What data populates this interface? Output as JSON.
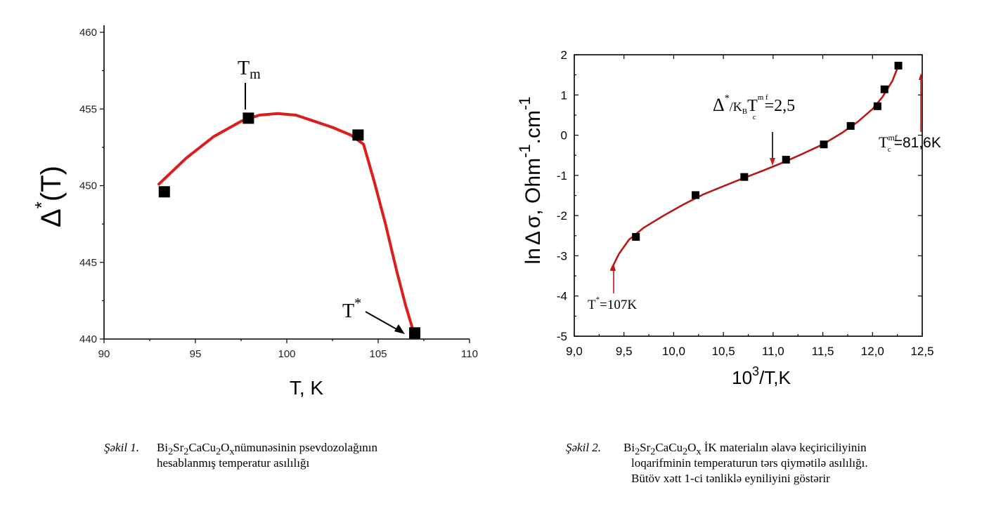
{
  "chart_data": [
    {
      "type": "scatter",
      "xlabel": "T, K",
      "ylabel_main": "Δ",
      "ylabel_sup": "*",
      "ylabel_tail": "(T)",
      "xlim": [
        90,
        110
      ],
      "ylim": [
        440,
        460
      ],
      "xticks": [
        90,
        95,
        100,
        105,
        110
      ],
      "yticks": [
        440,
        445,
        450,
        455,
        460
      ],
      "grid": false,
      "points": [
        {
          "x": 93.3,
          "y": 449.6
        },
        {
          "x": 97.9,
          "y": 454.4
        },
        {
          "x": 103.9,
          "y": 453.3
        },
        {
          "x": 107.0,
          "y": 440.4
        }
      ],
      "fit_line": {
        "color": "#dd1c1c",
        "x": [
          93.0,
          94.5,
          96.0,
          97.5,
          98.5,
          99.5,
          100.5,
          101.5,
          102.5,
          103.5,
          104.2,
          104.8,
          105.4,
          106.0,
          106.5,
          107.0
        ],
        "y": [
          450.1,
          451.8,
          453.2,
          454.2,
          454.6,
          454.7,
          454.6,
          454.2,
          453.8,
          453.3,
          452.7,
          450.2,
          447.5,
          444.5,
          442.2,
          440.2
        ]
      },
      "annotations": [
        {
          "label": "T",
          "sub": "m",
          "x": 97.9,
          "y": 455.2
        },
        {
          "label": "T",
          "sup": "*",
          "x": 107.0,
          "y": 440.4
        }
      ]
    },
    {
      "type": "scatter",
      "xlabel": "10",
      "xlabel_sup": "3",
      "xlabel_tail": "/T,K",
      "ylabel_pre": "ln",
      "ylabel_delta": "Δ",
      "ylabel_mid": "σ, Ohm",
      "ylabel_sup1": "-1",
      "ylabel_mid2": ".cm",
      "ylabel_sup2": "-1",
      "xlim": [
        9.0,
        12.5
      ],
      "ylim": [
        -5,
        2
      ],
      "xticks": [
        "9,0",
        "9,5",
        "10,0",
        "10,5",
        "11,0",
        "11,5",
        "12,0",
        "12,5"
      ],
      "xtick_values": [
        9.0,
        9.5,
        10.0,
        10.5,
        11.0,
        11.5,
        12.0,
        12.5
      ],
      "yticks": [
        "-5",
        "-4",
        "-3",
        "-2",
        "-1",
        "0",
        "1",
        "2"
      ],
      "ytick_values": [
        -5,
        -4,
        -3,
        -2,
        -1,
        0,
        1,
        2
      ],
      "grid": false,
      "points": [
        {
          "x": 9.62,
          "y": -2.53
        },
        {
          "x": 10.22,
          "y": -1.49
        },
        {
          "x": 10.71,
          "y": -1.04
        },
        {
          "x": 11.13,
          "y": -0.61
        },
        {
          "x": 11.51,
          "y": -0.23
        },
        {
          "x": 11.78,
          "y": 0.23
        },
        {
          "x": 12.05,
          "y": 0.72
        },
        {
          "x": 12.12,
          "y": 1.14
        },
        {
          "x": 12.26,
          "y": 1.73
        }
      ],
      "fit_line": {
        "color": "#b81818",
        "x": [
          9.37,
          9.45,
          9.55,
          9.7,
          9.9,
          10.1,
          10.3,
          10.5,
          10.7,
          10.9,
          11.1,
          11.3,
          11.5,
          11.7,
          11.85,
          12.0,
          12.1,
          12.2,
          12.26
        ],
        "y": [
          -3.35,
          -2.95,
          -2.6,
          -2.3,
          -2.0,
          -1.72,
          -1.47,
          -1.27,
          -1.07,
          -0.88,
          -0.68,
          -0.46,
          -0.23,
          0.07,
          0.33,
          0.65,
          0.95,
          1.35,
          1.73
        ]
      },
      "annotations": [
        {
          "label": "Δ",
          "sup": "*",
          "tail": "/K",
          "sub2": "B",
          "tail2": "T",
          "sup2": "m f",
          "sub3": "c",
          "tail3": "=2,5",
          "arrow_x": 10.87,
          "arrow_y": -0.87
        },
        {
          "label": "T",
          "sup": "mf",
          "sub": "c",
          "tail": "=81,6K",
          "arrow_x": 12.26,
          "arrow_y": 1.5
        },
        {
          "label": "T",
          "sup": "*",
          "tail": "=107K",
          "arrow_x": 9.37,
          "arrow_y": -3.35
        }
      ]
    }
  ],
  "captions": [
    {
      "label": "Şəkil 1.",
      "formula_parts": [
        "Bi",
        "2",
        "Sr",
        "2",
        "CaCu",
        "2",
        "O",
        "x"
      ],
      "line1_tail": "nümunəsinin psevdozolağının",
      "line2": "hesablanmış temperatur asılılığı"
    },
    {
      "label": "Şəkil 2.",
      "formula_parts": [
        "Bi",
        "2",
        "Sr",
        "2",
        "CaCu",
        "2",
        "O",
        "x"
      ],
      "line1_tail": " İK materialın əlavə keçiriciliyinin",
      "line2": "loqarifminin temperaturun tərs qiymətilə asılılığı.",
      "line3": "Bütöv xətt 1-ci tənliklə eyniliyini göstərir"
    }
  ]
}
